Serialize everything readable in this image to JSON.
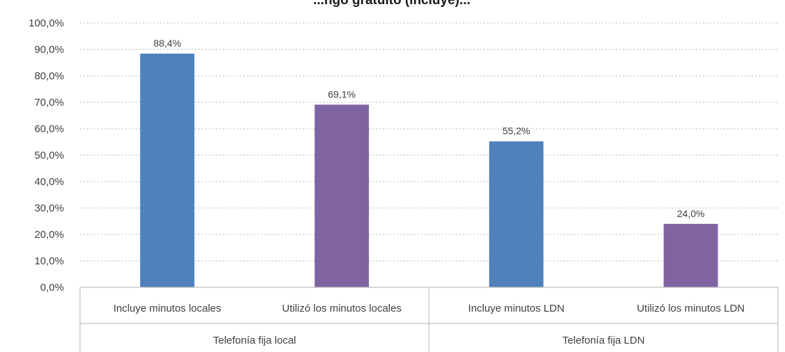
{
  "chart_data": {
    "type": "bar",
    "title": "...ngo gratuito (incluye)...",
    "ylim": [
      0,
      100
    ],
    "yticks": [
      0,
      10,
      20,
      30,
      40,
      50,
      60,
      70,
      80,
      90,
      100
    ],
    "ytick_labels": [
      "0,0%",
      "10,0%",
      "20,0%",
      "30,0%",
      "40,0%",
      "50,0%",
      "60,0%",
      "70,0%",
      "80,0%",
      "90,0%",
      "100,0%"
    ],
    "grid": true,
    "legend": "none",
    "groups": [
      {
        "label": "Telefonía fija local",
        "categories": [
          "Incluye minutos locales",
          "Utilizó los minutos locales"
        ]
      },
      {
        "label": "Telefonía fija LDN",
        "categories": [
          "Incluye minutos LDN",
          "Utilizó los minutos LDN"
        ]
      }
    ],
    "categories": [
      "Incluye minutos locales",
      "Utilizó los minutos locales",
      "Incluye minutos LDN",
      "Utilizó los minutos LDN"
    ],
    "values": [
      88.4,
      69.1,
      55.2,
      24.0
    ],
    "value_labels": [
      "88,4%",
      "69,1%",
      "55,2%",
      "24,0%"
    ],
    "bar_colors": [
      "#4f81bd",
      "#8064a2",
      "#4f81bd",
      "#8064a2"
    ]
  }
}
